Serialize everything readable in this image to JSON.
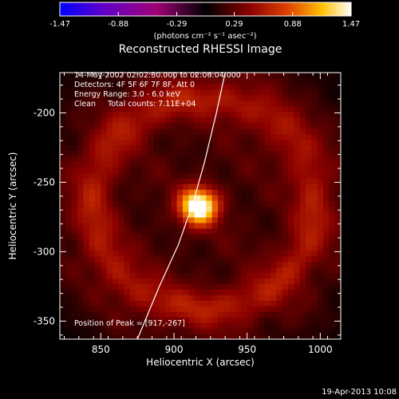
{
  "chart_data": {
    "type": "heatmap",
    "title": "Reconstructed RHESSI Image",
    "xlabel": "Heliocentric X (arcsec)",
    "ylabel": "Heliocentric Y (arcsec)",
    "xlim": [
      822,
      1014
    ],
    "ylim": [
      -363,
      -171
    ],
    "x_ticks": [
      850,
      900,
      950,
      1000
    ],
    "y_ticks": [
      -200,
      -250,
      -300,
      -350
    ],
    "colorbar": {
      "label": "(photons cm⁻² s⁻¹ asec⁻²)",
      "range": [
        -1.47,
        1.47
      ],
      "ticks": [
        "-1.47",
        "-0.88",
        "-0.29",
        "0.29",
        "0.88",
        "1.47"
      ],
      "colors": [
        "#0000ff",
        "#6000c8",
        "#a00078",
        "#000000",
        "#8a0000",
        "#e04000",
        "#ffc000",
        "#ffffff"
      ]
    },
    "annotations": [
      "14-May-2002 02:02:30.000 to 02:06:04.000",
      "Detectors: 4F 5F 6F 7F 8F, Att 0",
      "Energy Range: 3.0 - 6.0 keV",
      "Clean     Total counts: 7.11E+04",
      "Position of Peak = [917,-267]"
    ],
    "peak": {
      "x": 917,
      "y": -267,
      "value": 1.47,
      "sigma": 9
    },
    "ring": {
      "x": 920,
      "y": -265,
      "radius": 76,
      "width": 10,
      "value": 0.36
    },
    "background_level": 0.22,
    "limb_curve": [
      [
        935,
        -171
      ],
      [
        929,
        -200
      ],
      [
        921,
        -235
      ],
      [
        913,
        -265
      ],
      [
        903,
        -295
      ],
      [
        890,
        -325
      ],
      [
        875,
        -363
      ]
    ],
    "footer": "19-Apr-2013 10:08"
  }
}
